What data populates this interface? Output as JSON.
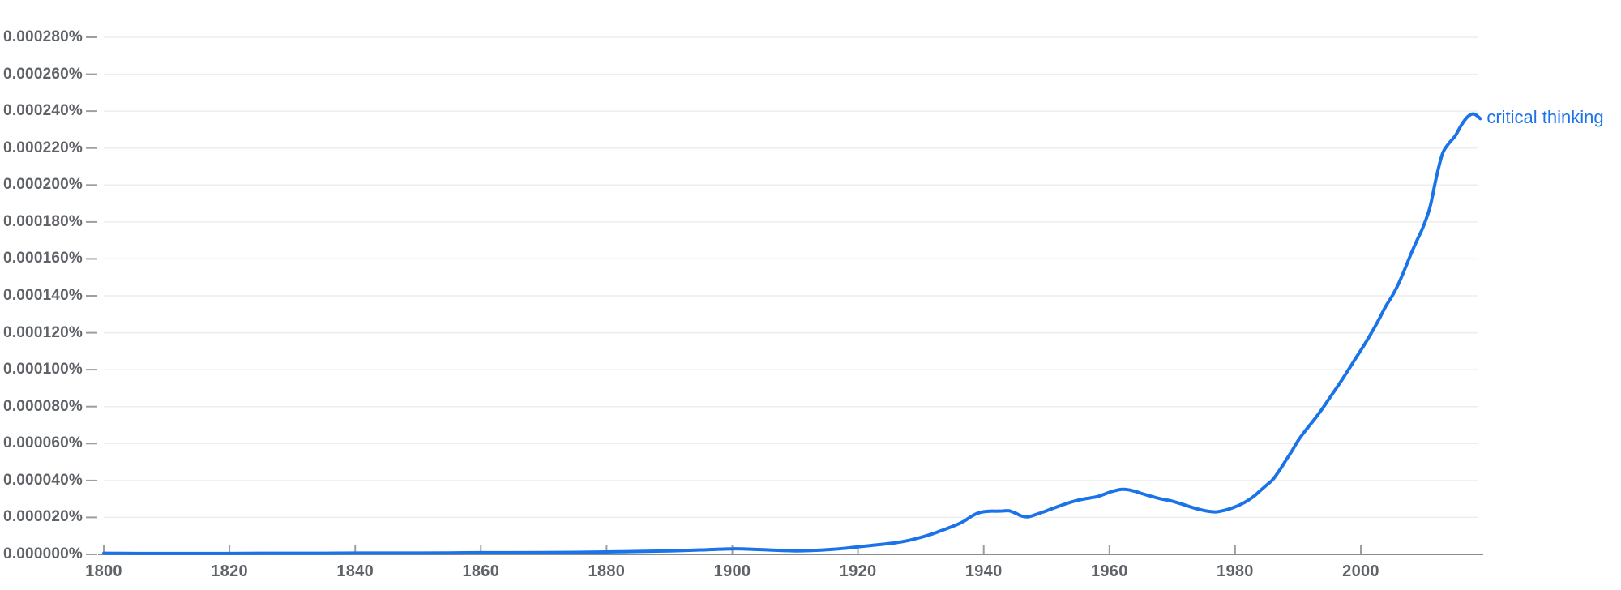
{
  "colors": {
    "series_blue": "#1a73e8",
    "gridline": "#eeeeee",
    "axis_line": "#8c8c8c",
    "tick_mark": "#9e9e9e",
    "axis_text": "#5f6368",
    "background": "#ffffff"
  },
  "chart_data": {
    "type": "line",
    "title": "",
    "xlabel": "",
    "ylabel": "",
    "grid": true,
    "legend_position": "end-of-line",
    "x_axis": {
      "range": [
        1800,
        2019
      ],
      "ticks": [
        1800,
        1820,
        1840,
        1860,
        1880,
        1900,
        1920,
        1940,
        1960,
        1980,
        2000
      ]
    },
    "y_axis": {
      "max": 0.00028,
      "unit": "%",
      "ticks": [
        {
          "value": 0.0,
          "label": "0.000000%"
        },
        {
          "value": 2e-05,
          "label": "0.000020%"
        },
        {
          "value": 4e-05,
          "label": "0.000040%"
        },
        {
          "value": 6e-05,
          "label": "0.000060%"
        },
        {
          "value": 8e-05,
          "label": "0.000080%"
        },
        {
          "value": 0.0001,
          "label": "0.000100%"
        },
        {
          "value": 0.00012,
          "label": "0.000120%"
        },
        {
          "value": 0.00014,
          "label": "0.000140%"
        },
        {
          "value": 0.00016,
          "label": "0.000160%"
        },
        {
          "value": 0.00018,
          "label": "0.000180%"
        },
        {
          "value": 0.0002,
          "label": "0.000200%"
        },
        {
          "value": 0.00022,
          "label": "0.000220%"
        },
        {
          "value": 0.00024,
          "label": "0.000240%"
        },
        {
          "value": 0.00026,
          "label": "0.000260%"
        },
        {
          "value": 0.00028,
          "label": "0.000280%"
        }
      ]
    },
    "series": [
      {
        "name": "critical thinking",
        "color": "#1a73e8",
        "points": [
          [
            1800,
            6e-07
          ],
          [
            1805,
            5e-07
          ],
          [
            1810,
            5e-07
          ],
          [
            1815,
            5e-07
          ],
          [
            1820,
            5e-07
          ],
          [
            1825,
            6e-07
          ],
          [
            1830,
            6e-07
          ],
          [
            1835,
            6e-07
          ],
          [
            1840,
            7e-07
          ],
          [
            1845,
            7e-07
          ],
          [
            1850,
            7e-07
          ],
          [
            1855,
            8e-07
          ],
          [
            1860,
            9e-07
          ],
          [
            1865,
            9e-07
          ],
          [
            1870,
            1e-06
          ],
          [
            1875,
            1.1e-06
          ],
          [
            1880,
            1.3e-06
          ],
          [
            1885,
            1.6e-06
          ],
          [
            1890,
            1.9e-06
          ],
          [
            1895,
            2.4e-06
          ],
          [
            1898,
            2.8e-06
          ],
          [
            1900,
            3e-06
          ],
          [
            1902,
            2.9e-06
          ],
          [
            1905,
            2.5e-06
          ],
          [
            1908,
            2.1e-06
          ],
          [
            1910,
            1.9e-06
          ],
          [
            1912,
            2e-06
          ],
          [
            1914,
            2.3e-06
          ],
          [
            1916,
            2.7e-06
          ],
          [
            1918,
            3.3e-06
          ],
          [
            1920,
            4.1e-06
          ],
          [
            1922,
            4.8e-06
          ],
          [
            1924,
            5.5e-06
          ],
          [
            1926,
            6.3e-06
          ],
          [
            1928,
            7.5e-06
          ],
          [
            1930,
            9.2e-06
          ],
          [
            1932,
            1.13e-05
          ],
          [
            1934,
            1.38e-05
          ],
          [
            1936,
            1.65e-05
          ],
          [
            1937,
            1.82e-05
          ],
          [
            1938,
            2.05e-05
          ],
          [
            1939,
            2.22e-05
          ],
          [
            1940,
            2.31e-05
          ],
          [
            1941,
            2.34e-05
          ],
          [
            1942,
            2.34e-05
          ],
          [
            1943,
            2.35e-05
          ],
          [
            1944,
            2.36e-05
          ],
          [
            1945,
            2.24e-05
          ],
          [
            1946,
            2.08e-05
          ],
          [
            1947,
            2.03e-05
          ],
          [
            1948,
            2.12e-05
          ],
          [
            1949,
            2.24e-05
          ],
          [
            1950,
            2.36e-05
          ],
          [
            1951,
            2.49e-05
          ],
          [
            1952,
            2.61e-05
          ],
          [
            1953,
            2.73e-05
          ],
          [
            1954,
            2.84e-05
          ],
          [
            1955,
            2.93e-05
          ],
          [
            1956,
            3e-05
          ],
          [
            1957,
            3.06e-05
          ],
          [
            1958,
            3.12e-05
          ],
          [
            1959,
            3.23e-05
          ],
          [
            1960,
            3.36e-05
          ],
          [
            1961,
            3.46e-05
          ],
          [
            1962,
            3.52e-05
          ],
          [
            1963,
            3.5e-05
          ],
          [
            1964,
            3.42e-05
          ],
          [
            1965,
            3.31e-05
          ],
          [
            1966,
            3.21e-05
          ],
          [
            1967,
            3.11e-05
          ],
          [
            1968,
            3.02e-05
          ],
          [
            1969,
            2.95e-05
          ],
          [
            1970,
            2.88e-05
          ],
          [
            1971,
            2.78e-05
          ],
          [
            1972,
            2.67e-05
          ],
          [
            1973,
            2.56e-05
          ],
          [
            1974,
            2.46e-05
          ],
          [
            1975,
            2.38e-05
          ],
          [
            1976,
            2.32e-05
          ],
          [
            1977,
            2.3e-05
          ],
          [
            1978,
            2.36e-05
          ],
          [
            1979,
            2.45e-05
          ],
          [
            1980,
            2.57e-05
          ],
          [
            1981,
            2.72e-05
          ],
          [
            1982,
            2.91e-05
          ],
          [
            1983,
            3.15e-05
          ],
          [
            1984,
            3.45e-05
          ],
          [
            1985,
            3.75e-05
          ],
          [
            1986,
            4.05e-05
          ],
          [
            1987,
            4.52e-05
          ],
          [
            1988,
            5.05e-05
          ],
          [
            1989,
            5.58e-05
          ],
          [
            1990,
            6.15e-05
          ],
          [
            1991,
            6.62e-05
          ],
          [
            1992,
            7.05e-05
          ],
          [
            1993,
            7.48e-05
          ],
          [
            1994,
            7.95e-05
          ],
          [
            1995,
            8.45e-05
          ],
          [
            1996,
            8.95e-05
          ],
          [
            1997,
            9.45e-05
          ],
          [
            1998,
            9.98e-05
          ],
          [
            1999,
            0.0001052
          ],
          [
            2000,
            0.0001105
          ],
          [
            2001,
            0.000116
          ],
          [
            2002,
            0.0001218
          ],
          [
            2003,
            0.000128
          ],
          [
            2004,
            0.0001345
          ],
          [
            2005,
            0.00014
          ],
          [
            2006,
            0.0001465
          ],
          [
            2007,
            0.0001545
          ],
          [
            2008,
            0.0001628
          ],
          [
            2009,
            0.0001705
          ],
          [
            2010,
            0.000178
          ],
          [
            2011,
            0.000188
          ],
          [
            2012,
            0.000204
          ],
          [
            2013,
            0.000217
          ],
          [
            2014,
            0.0002225
          ],
          [
            2015,
            0.0002265
          ],
          [
            2016,
            0.0002325
          ],
          [
            2017,
            0.000237
          ],
          [
            2018,
            0.0002385
          ],
          [
            2019,
            0.000236
          ]
        ]
      }
    ]
  }
}
